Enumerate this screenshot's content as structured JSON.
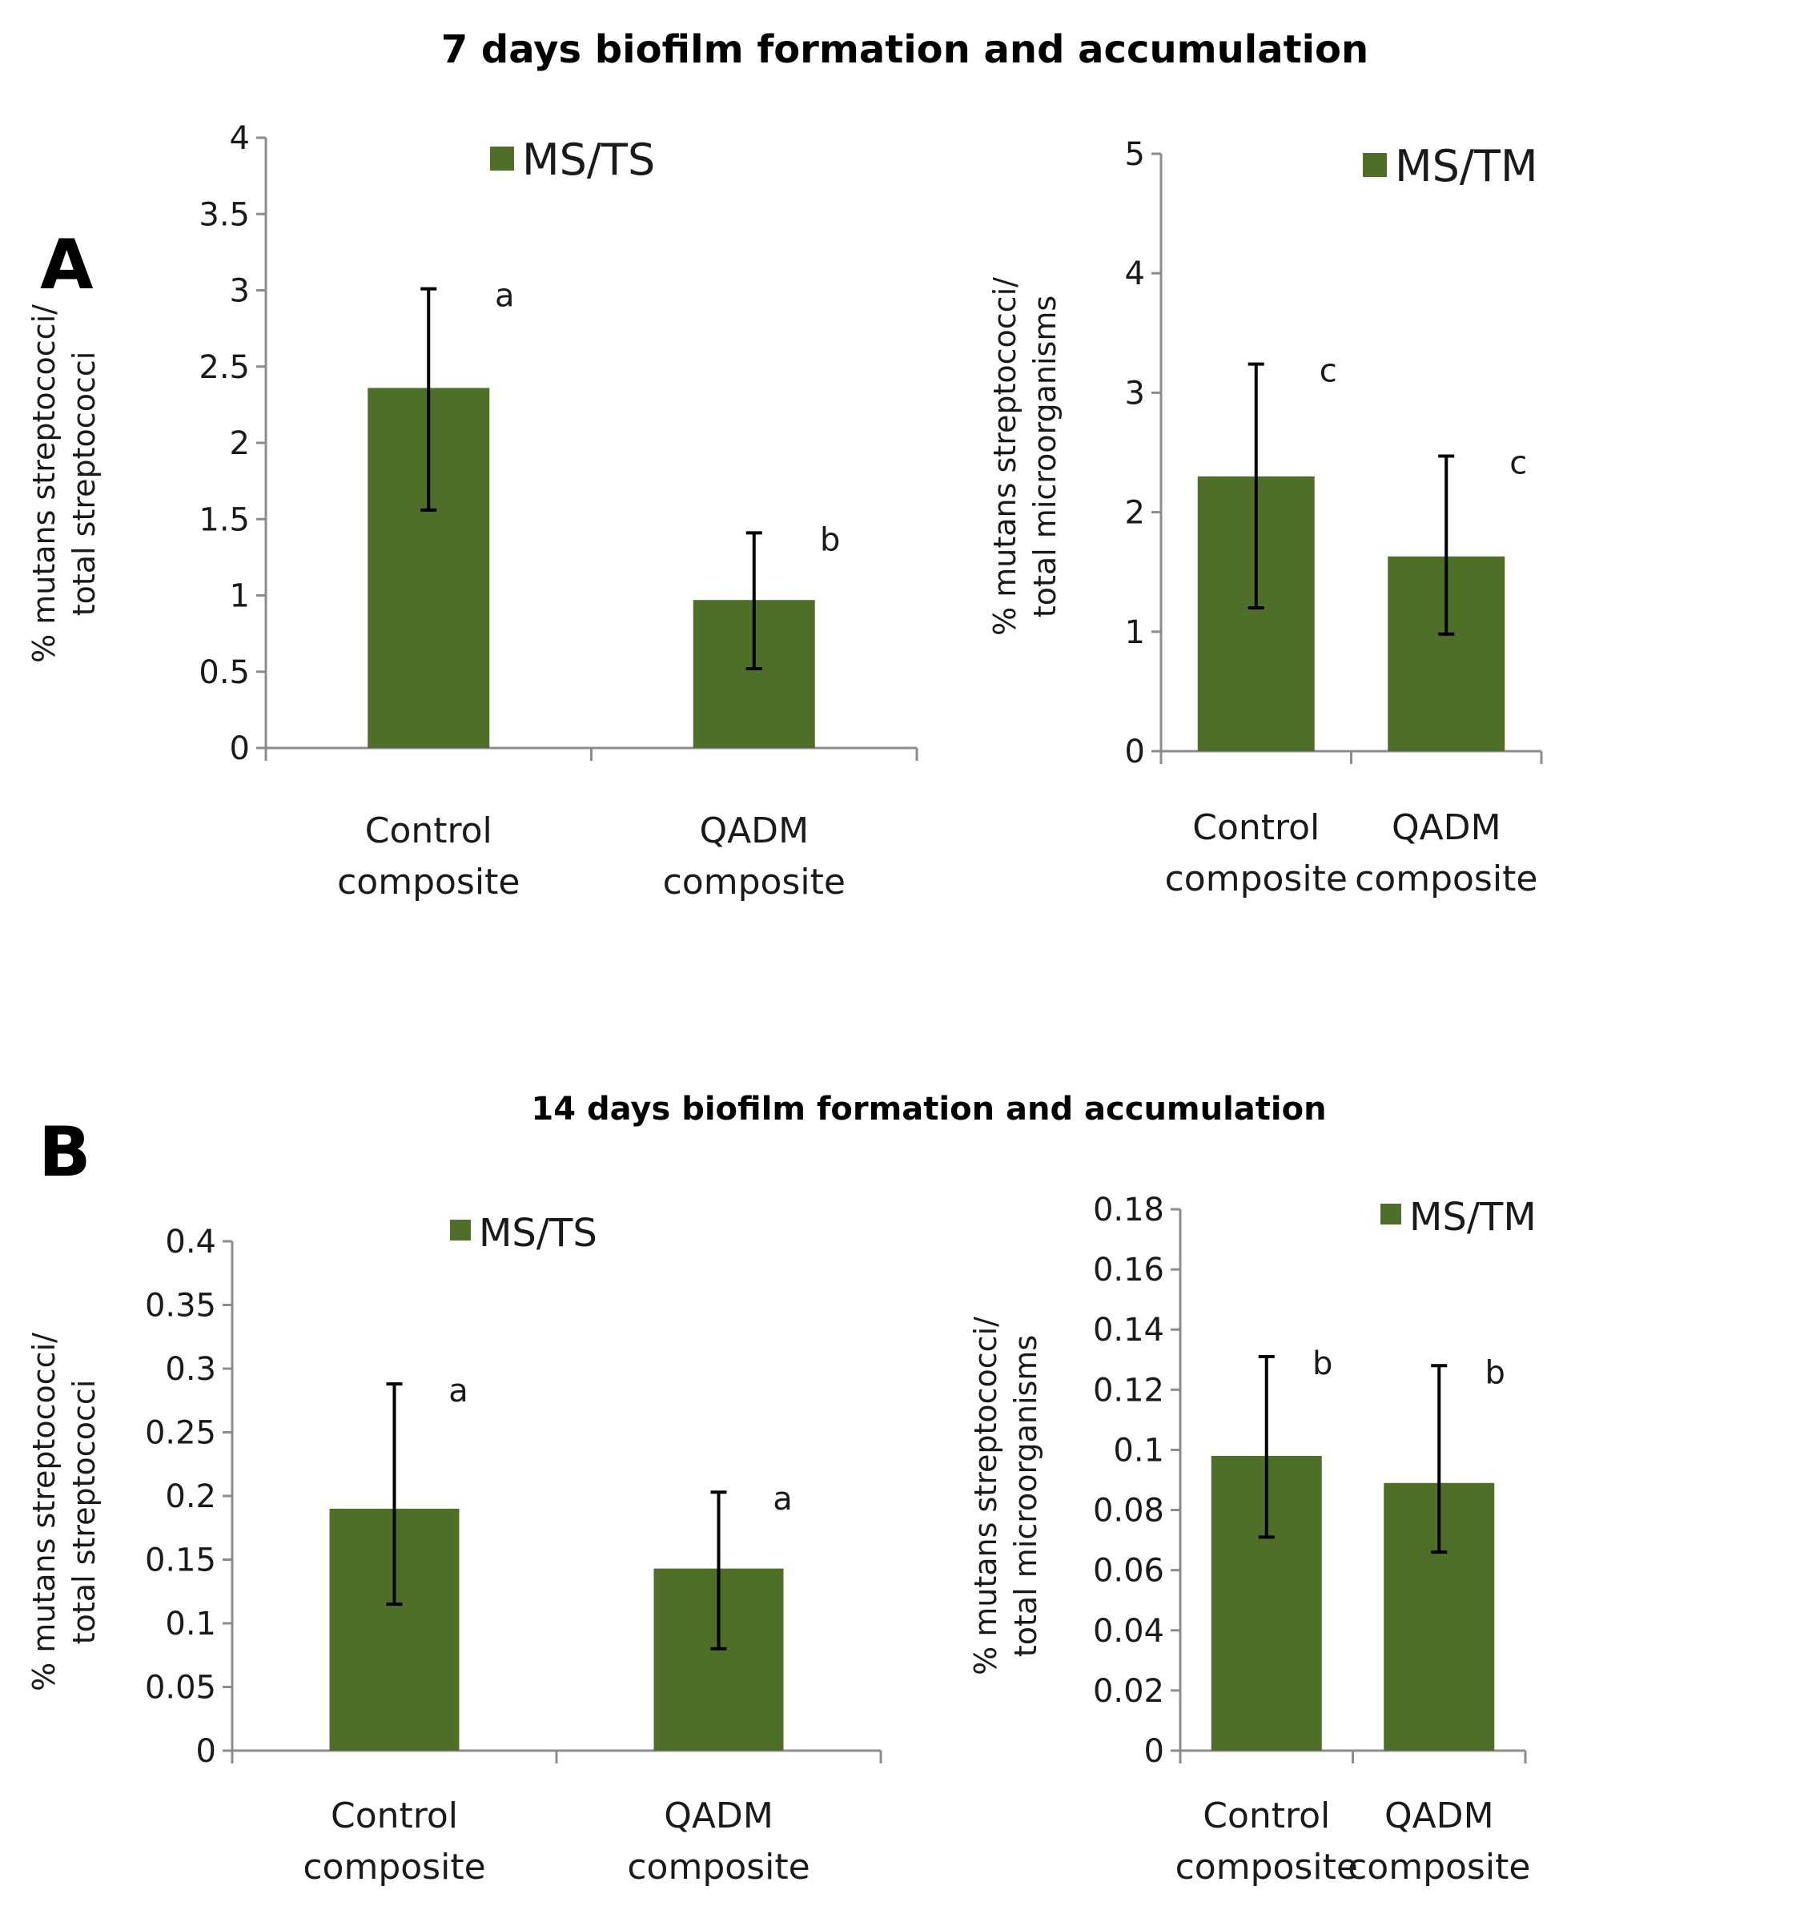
{
  "figure": {
    "panel_a_title": "7 days biofilm formation and accumulation",
    "panel_b_title": "14 days biofilm formation and accumulation",
    "panel_a_letter": "A",
    "panel_b_letter": "B"
  },
  "colors": {
    "bar": "#4f6f28",
    "axis": "#8c8c8c",
    "error": "#000000",
    "text": "#1a1a1a"
  },
  "chart_data": [
    {
      "type": "bar",
      "panel": "A",
      "legend": "MS/TS",
      "ylabel_line1": "% mutans streptococci/",
      "ylabel_line2": "total streptococci",
      "categories": [
        [
          "Control",
          "composite"
        ],
        [
          "QADM",
          "composite"
        ]
      ],
      "values": [
        2.36,
        0.97
      ],
      "errors_low": [
        1.56,
        0.52
      ],
      "errors_high": [
        3.01,
        1.41
      ],
      "sig_labels": [
        "a",
        "b"
      ],
      "ylim": [
        0,
        4
      ],
      "yticks": [
        "0",
        "0.5",
        "1",
        "1.5",
        "2",
        "2.5",
        "3",
        "3.5",
        "4"
      ]
    },
    {
      "type": "bar",
      "panel": "A",
      "legend": "MS/TM",
      "ylabel_line1": "% mutans streptococci/",
      "ylabel_line2": "total microorganisms",
      "categories": [
        [
          "Control",
          "composite"
        ],
        [
          "QADM",
          "composite"
        ]
      ],
      "values": [
        2.3,
        1.63
      ],
      "errors_low": [
        1.2,
        0.98
      ],
      "errors_high": [
        3.24,
        2.47
      ],
      "sig_labels": [
        "c",
        "c"
      ],
      "ylim": [
        0,
        5
      ],
      "yticks": [
        "0",
        "1",
        "2",
        "3",
        "4",
        "5"
      ]
    },
    {
      "type": "bar",
      "panel": "B",
      "legend": "MS/TS",
      "ylabel_line1": "% mutans streptococci/",
      "ylabel_line2": "total streptococci",
      "categories": [
        [
          "Control",
          "composite"
        ],
        [
          "QADM",
          "composite"
        ]
      ],
      "values": [
        0.19,
        0.143
      ],
      "errors_low": [
        0.115,
        0.08
      ],
      "errors_high": [
        0.288,
        0.203
      ],
      "sig_labels": [
        "a",
        "a"
      ],
      "ylim": [
        0,
        0.4
      ],
      "yticks": [
        "0",
        "0.05",
        "0.1",
        "0.15",
        "0.2",
        "0.25",
        "0.3",
        "0.35",
        "0.4"
      ]
    },
    {
      "type": "bar",
      "panel": "B",
      "legend": "MS/TM",
      "ylabel_line1": "% mutans streptococci/",
      "ylabel_line2": "total microorganisms",
      "categories": [
        [
          "Control",
          "composite"
        ],
        [
          "QADM",
          "composite"
        ]
      ],
      "values": [
        0.098,
        0.089
      ],
      "errors_low": [
        0.071,
        0.066
      ],
      "errors_high": [
        0.131,
        0.128
      ],
      "sig_labels": [
        "b",
        "b"
      ],
      "ylim": [
        0,
        0.18
      ],
      "yticks": [
        "0",
        "0.02",
        "0.04",
        "0.06",
        "0.08",
        "0.1",
        "0.12",
        "0.14",
        "0.16",
        "0.18"
      ]
    }
  ]
}
